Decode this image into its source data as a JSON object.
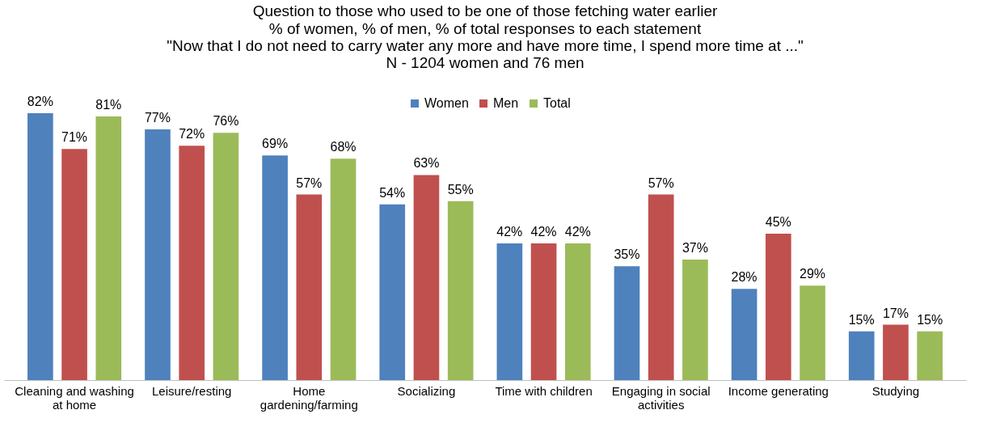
{
  "chart_data": {
    "type": "bar",
    "title": "Question to those who used to be one of those fetching water earlier",
    "subtitle": "% of women, % of men, % of total responses to each statement\n\"Now that I do not need to carry water any more and have more time, I spend more time at ...\"\nN - 1204 women and 76 men",
    "categories": [
      "Cleaning and washing at home",
      "Leisure/resting",
      "Home gardening/farming",
      "Socializing",
      "Time with children",
      "Engaging in social activities",
      "Income generating",
      "Studying"
    ],
    "series": [
      {
        "name": "Women",
        "color": "#4f81bd",
        "values": [
          82,
          77,
          69,
          54,
          42,
          35,
          28,
          15
        ],
        "value_labels": [
          "82%",
          "77%",
          "69%",
          "54%",
          "42%",
          "35%",
          "28%",
          "15%"
        ]
      },
      {
        "name": "Men",
        "color": "#c0504d",
        "values": [
          71,
          72,
          57,
          63,
          42,
          57,
          45,
          17
        ],
        "value_labels": [
          "71%",
          "72%",
          "57%",
          "63%",
          "42%",
          "57%",
          "45%",
          "17%"
        ]
      },
      {
        "name": "Total",
        "color": "#9bbb59",
        "values": [
          81,
          76,
          68,
          55,
          42,
          37,
          29,
          15
        ],
        "value_labels": [
          "81%",
          "76%",
          "68%",
          "55%",
          "42%",
          "37%",
          "29%",
          "15%"
        ]
      }
    ],
    "legend": "top",
    "grid": false
  }
}
